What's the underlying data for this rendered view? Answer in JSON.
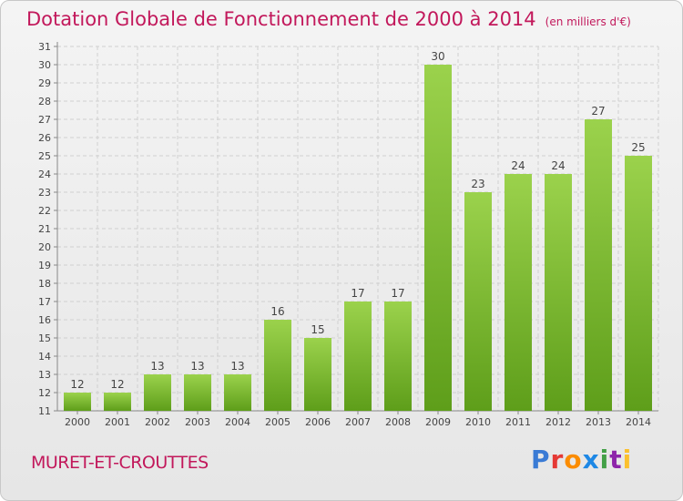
{
  "header": {
    "title": "Dotation Globale de Fonctionnement de 2000 à 2014",
    "unit": "(en milliers d'€)"
  },
  "footer": {
    "commune": "MURET-ET-CROUTTES",
    "logo_letters": [
      "P",
      "r",
      "o",
      "x",
      "i",
      "t",
      "i"
    ],
    "logo_colors": [
      "#3a7bd5",
      "#e53935",
      "#fb8c00",
      "#1e88e5",
      "#43a047",
      "#8e24aa",
      "#fbc02d"
    ]
  },
  "chart_data": {
    "type": "bar",
    "title": "Dotation Globale de Fonctionnement de 2000 à 2014",
    "categories": [
      "2000",
      "2001",
      "2002",
      "2003",
      "2004",
      "2005",
      "2006",
      "2007",
      "2008",
      "2009",
      "2010",
      "2011",
      "2012",
      "2013",
      "2014"
    ],
    "values": [
      12,
      12,
      13,
      13,
      13,
      16,
      15,
      17,
      17,
      30,
      23,
      24,
      24,
      27,
      25
    ],
    "yticks": [
      "11",
      "12",
      "13",
      "14",
      "15",
      "16",
      "17",
      "18",
      "19",
      "20",
      "21",
      "22",
      "23",
      "24",
      "25",
      "26",
      "27",
      "28",
      "29",
      "30",
      "31"
    ],
    "ylim": [
      11,
      31
    ],
    "grid": true,
    "bar_color": "#8cc63f"
  }
}
